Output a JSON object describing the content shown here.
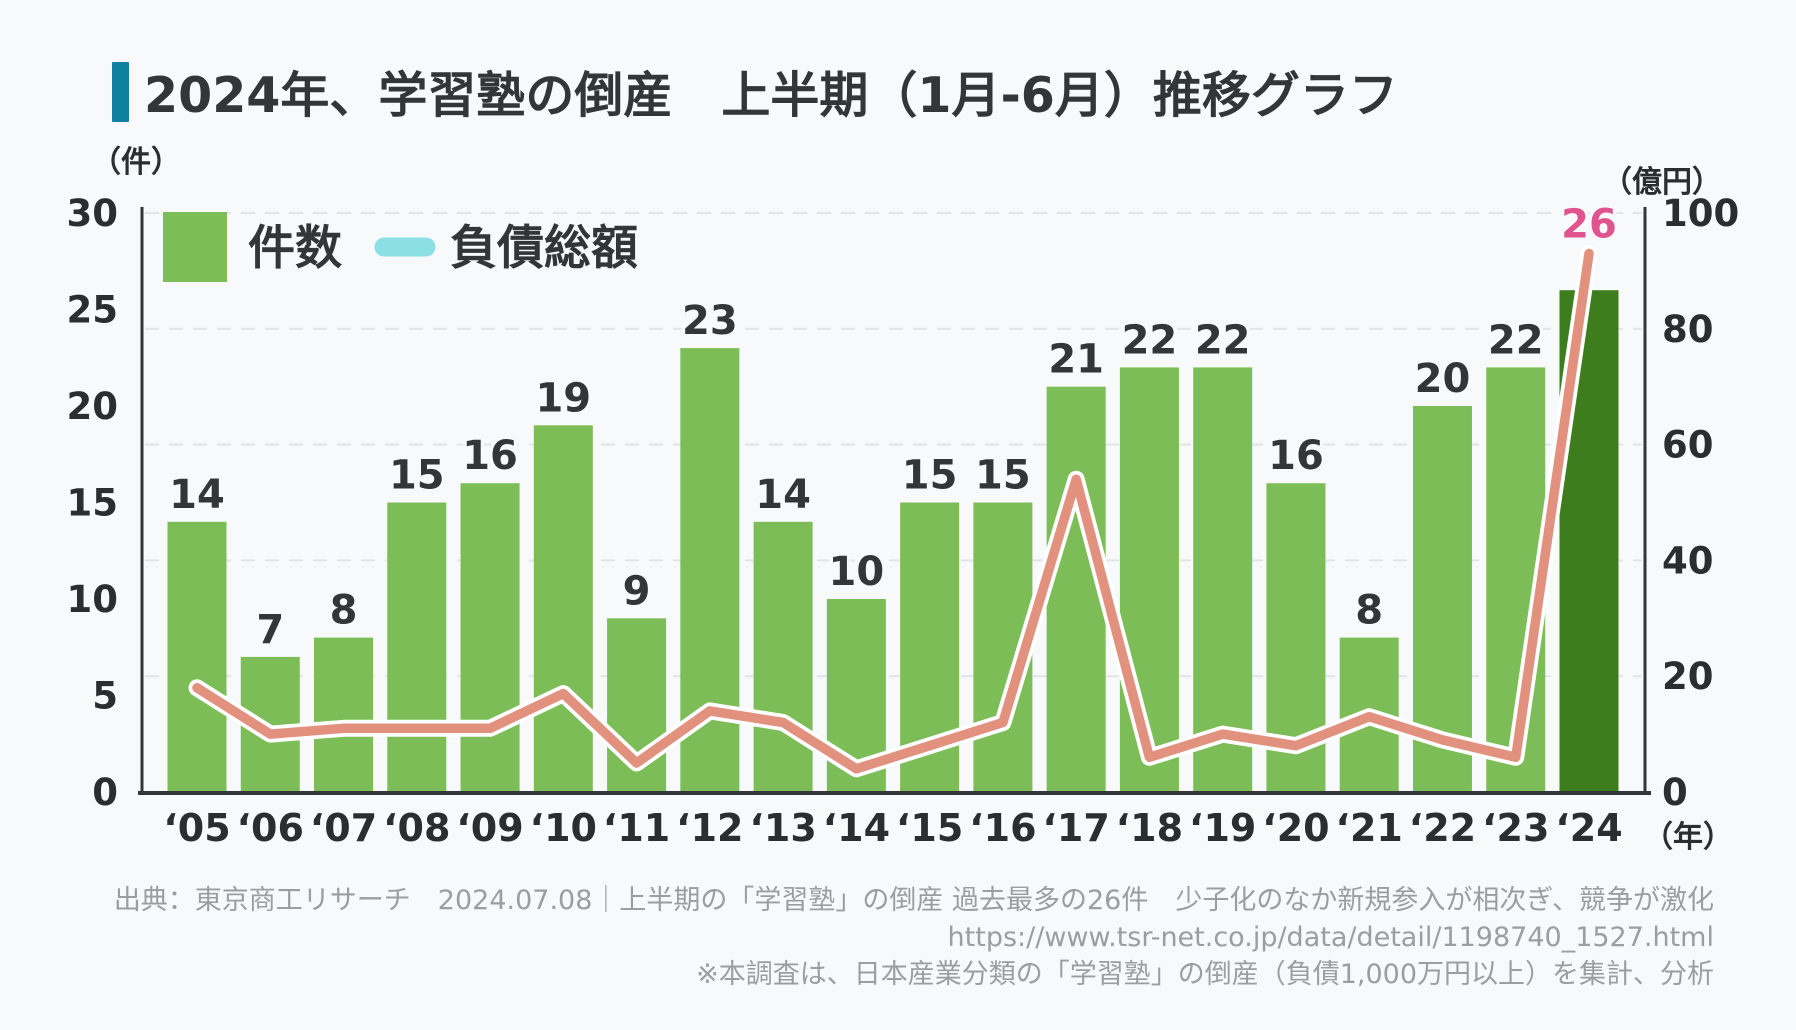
{
  "header": {
    "title": "2024年、学習塾の倒産　上半期（1月‐6月）推移グラフ",
    "accent_color": "#1080a0"
  },
  "legend": {
    "cases_label": "件数",
    "liabilities_label": "負債総額",
    "cases_color": "#7cbd58",
    "liabilities_marker_color": "#8be0e6"
  },
  "chart_data": {
    "type": "combo",
    "categories": [
      "‘05",
      "‘06",
      "‘07",
      "‘08",
      "‘09",
      "‘10",
      "‘11",
      "‘12",
      "‘13",
      "‘14",
      "‘15",
      "‘16",
      "‘17",
      "‘18",
      "‘19",
      "‘20",
      "‘21",
      "‘22",
      "‘23",
      "‘24"
    ],
    "series": [
      {
        "name": "件数",
        "type": "bar",
        "axis": "left",
        "values": [
          14,
          7,
          8,
          15,
          16,
          19,
          9,
          23,
          14,
          10,
          15,
          15,
          21,
          22,
          22,
          16,
          8,
          20,
          22,
          26
        ],
        "color": "#7cbd58"
      },
      {
        "name": "負債総額",
        "type": "line",
        "axis": "right",
        "values": [
          18,
          10,
          11,
          11,
          11,
          17,
          5,
          14,
          12,
          4,
          8,
          12,
          54,
          6,
          10,
          8,
          13,
          9,
          6,
          93
        ],
        "color": "#e2917f",
        "outline_color": "#ffffff"
      }
    ],
    "left_axis": {
      "label": "（件）",
      "range": [
        0,
        30
      ],
      "ticks": [
        0,
        5,
        10,
        15,
        20,
        25,
        30
      ]
    },
    "right_axis": {
      "label": "（億円）",
      "range": [
        0,
        100
      ],
      "ticks": [
        0,
        20,
        40,
        60,
        80,
        100
      ]
    },
    "x_axis": {
      "label": "（年）"
    },
    "highlight": {
      "index": 19,
      "bar_color": "#3e7d1d",
      "label_color": "#e0538f"
    },
    "grid": {
      "style": "dashed",
      "at_right_ticks": true,
      "color": "#e2e5e7"
    },
    "value_label_color": "#333639",
    "axis_text_color": "#2b2e30",
    "axis_line_color": "#333639",
    "legend_position": "top-left-inside"
  },
  "source": {
    "line1": "出典：東京商工リサーチ　2024.07.08｜上半期の「学習塾」の倒産 過去最多の26件　少子化のなか新規参入が相次ぎ、競争が激化",
    "line2": "https://www.tsr-net.co.jp/data/detail/1198740_1527.html",
    "line3": "※本調査は、日本産業分類の「学習塾」の倒産（負債1,000万円以上）を集計、分析"
  }
}
